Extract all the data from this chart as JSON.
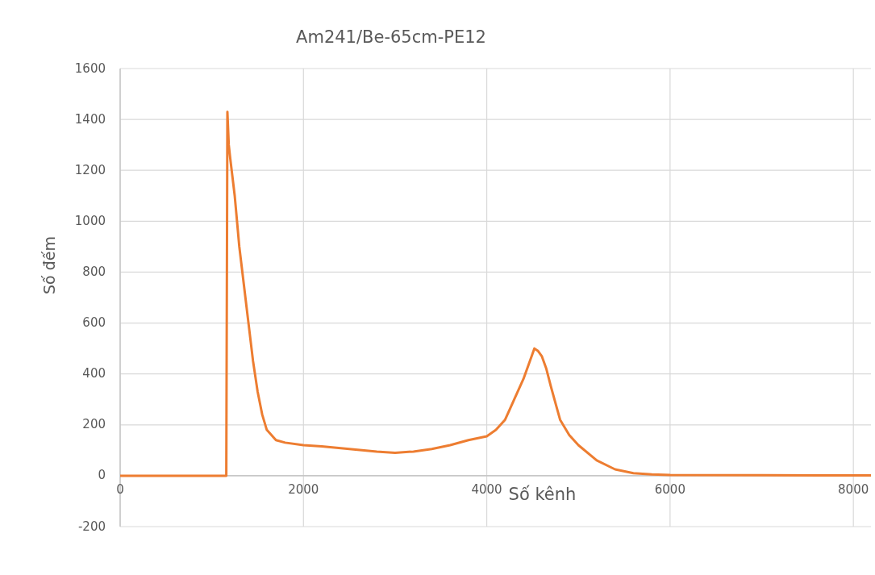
{
  "chart_data": {
    "type": "line",
    "title": "Am241/Be-65cm-PE12",
    "xlabel": "Số kênh",
    "ylabel": "Số đếm",
    "x": [
      0,
      1150,
      1158,
      1170,
      1185,
      1200,
      1250,
      1300,
      1350,
      1400,
      1450,
      1500,
      1550,
      1600,
      1700,
      1800,
      2000,
      2200,
      2500,
      2800,
      3000,
      3200,
      3400,
      3600,
      3800,
      4000,
      4100,
      4200,
      4300,
      4400,
      4480,
      4520,
      4560,
      4600,
      4650,
      4700,
      4800,
      4900,
      5000,
      5200,
      5400,
      5600,
      5800,
      6000,
      7000,
      8192
    ],
    "series": [
      {
        "color": "#ed7d31",
        "values": [
          0,
          0,
          0,
          1430,
          1300,
          1250,
          1100,
          900,
          750,
          600,
          450,
          330,
          240,
          180,
          140,
          130,
          120,
          115,
          105,
          95,
          90,
          95,
          105,
          120,
          140,
          155,
          180,
          220,
          300,
          380,
          460,
          500,
          490,
          470,
          420,
          350,
          220,
          160,
          120,
          60,
          25,
          10,
          5,
          3,
          2,
          1
        ]
      }
    ],
    "xlim": [
      0,
      8192
    ],
    "xticks": [
      0,
      2000,
      4000,
      6000,
      8000
    ],
    "ylim": [
      -200,
      1600
    ],
    "yticks": [
      -200,
      0,
      200,
      400,
      600,
      800,
      1000,
      1200,
      1400,
      1600
    ],
    "grid": true,
    "marker": "none",
    "line_style": "solid"
  }
}
